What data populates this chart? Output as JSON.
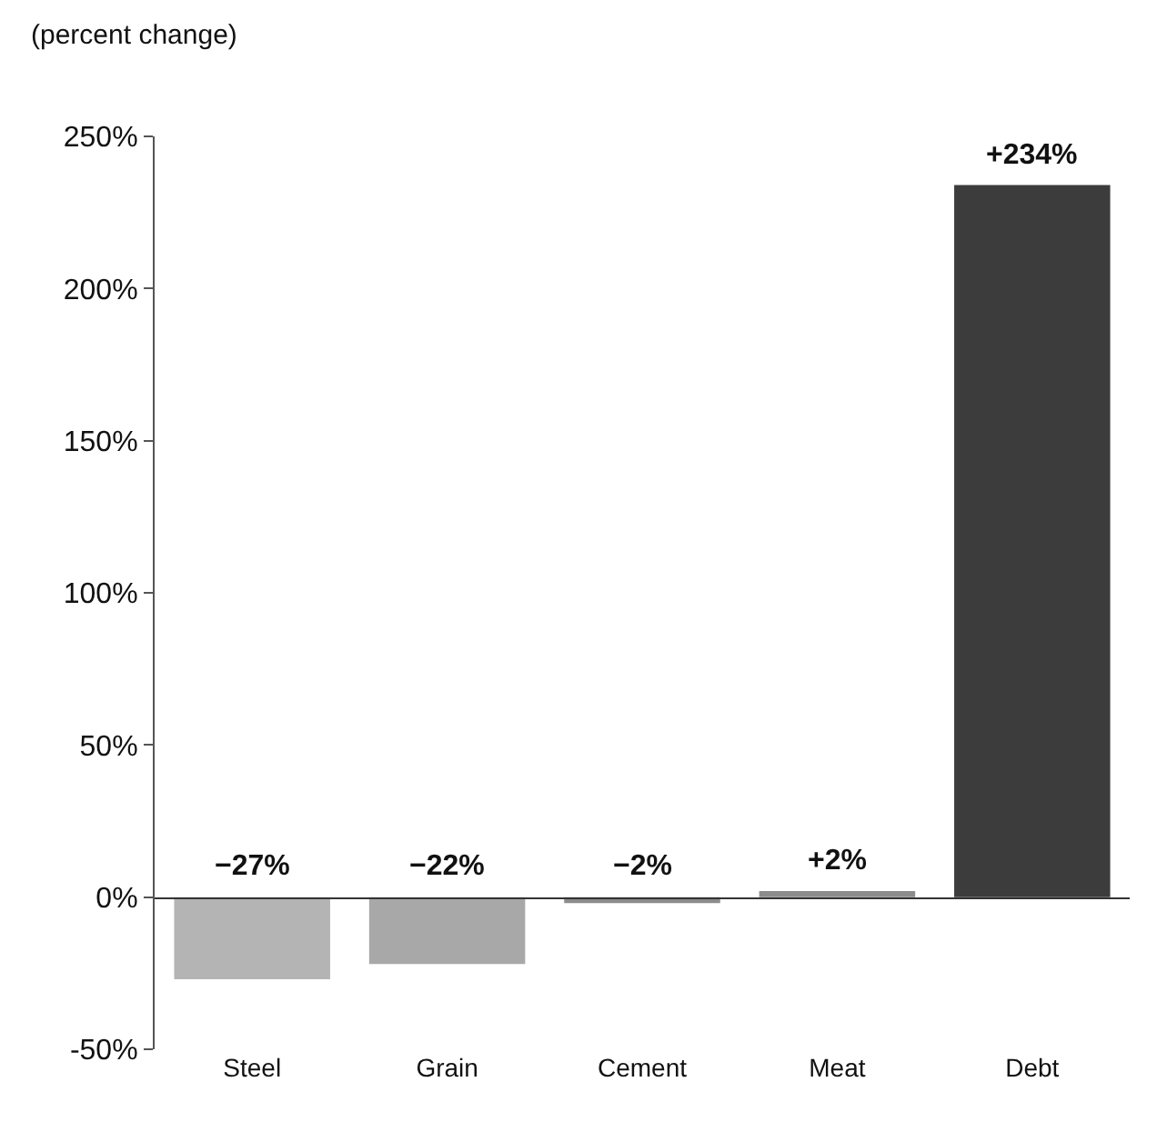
{
  "chart_data": {
    "type": "bar",
    "ylabel": "(percent change)",
    "categories": [
      "Steel",
      "Grain",
      "Cement",
      "Meat",
      "Debt"
    ],
    "values": [
      -27,
      -22,
      -2,
      2,
      234
    ],
    "colors": [
      "#b4b4b4",
      "#a8a8a8",
      "#8c8c8c",
      "#8c8c8c",
      "#3c3c3c"
    ],
    "value_labels": [
      "−27%",
      "−22%",
      "−2%",
      "+2%",
      "+234%"
    ],
    "ylim": [
      -50,
      250
    ],
    "yticks": [
      {
        "value": -50,
        "label": "-50%"
      },
      {
        "value": 0,
        "label": "0%"
      },
      {
        "value": 50,
        "label": "50%"
      },
      {
        "value": 100,
        "label": "100%"
      },
      {
        "value": 150,
        "label": "150%"
      },
      {
        "value": 200,
        "label": "200%"
      },
      {
        "value": 250,
        "label": "250%"
      }
    ]
  }
}
